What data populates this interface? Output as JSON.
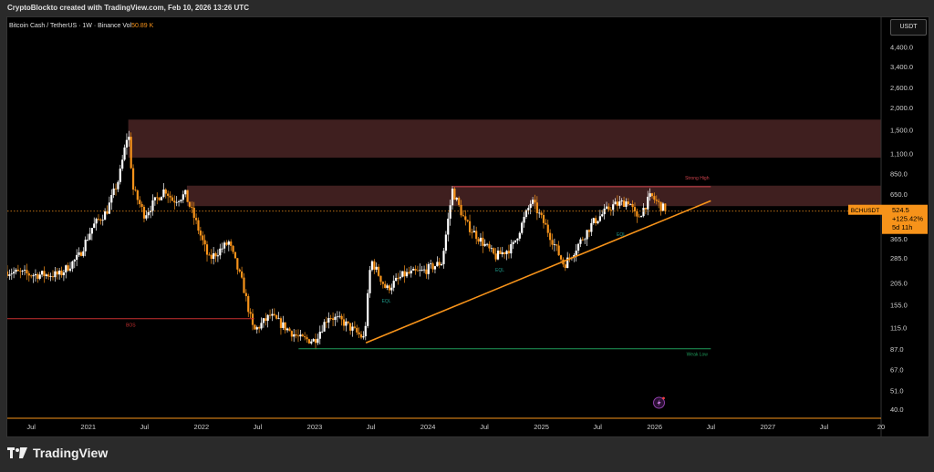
{
  "banner": {
    "text": "CryptoBlockto created with TradingView.com, Feb 10, 2026 13:26 UTC"
  },
  "header": {
    "symbol": "Bitcoin Cash / TetherUS · 1W · Binance",
    "vol_label": "Vol",
    "vol_value": "50.89 K"
  },
  "currency_button": "USDT",
  "footer": {
    "brand": "TradingView"
  },
  "colors": {
    "up": "#ffffff",
    "down": "#f7931a",
    "trendline": "#f7931a",
    "zone": "#4a2525",
    "strong_high_line": "#c8404a",
    "weak_low_line": "#1f9a5a",
    "bos_line": "#c83030",
    "price_label_bg": "#f7931a"
  },
  "chart_data": {
    "type": "candlestick",
    "y_scale": "log",
    "ylim": [
      37,
      5000
    ],
    "y_ticks": [
      "4,400.0",
      "3,400.0",
      "2,600.0",
      "2,000.0",
      "1,500.0",
      "1,100.0",
      "850.0",
      "650.0",
      "365.0",
      "285.0",
      "205.0",
      "155.0",
      "115.0",
      "87.0",
      "67.0",
      "51.0",
      "40.0"
    ],
    "x_ticks": [
      {
        "date": "2020-07-01",
        "label": "Jul"
      },
      {
        "date": "2021-01-01",
        "label": "2021"
      },
      {
        "date": "2021-07-01",
        "label": "Jul"
      },
      {
        "date": "2022-01-01",
        "label": "2022"
      },
      {
        "date": "2022-07-01",
        "label": "Jul"
      },
      {
        "date": "2023-01-01",
        "label": "2023"
      },
      {
        "date": "2023-07-01",
        "label": "Jul"
      },
      {
        "date": "2024-01-01",
        "label": "2024"
      },
      {
        "date": "2024-07-01",
        "label": "Jul"
      },
      {
        "date": "2025-01-01",
        "label": "2025"
      },
      {
        "date": "2025-07-01",
        "label": "Jul"
      },
      {
        "date": "2026-01-01",
        "label": "2026"
      },
      {
        "date": "2026-07-01",
        "label": "Jul"
      },
      {
        "date": "2027-01-01",
        "label": "2027"
      },
      {
        "date": "2027-07-01",
        "label": "Jul"
      },
      {
        "date": "2028-01-01",
        "label": "20"
      }
    ],
    "x_range": [
      "2020-04-15",
      "2028-01-01"
    ],
    "price_path": [
      [
        "2020-04-15",
        240
      ],
      [
        "2020-07-01",
        230
      ],
      [
        "2020-10-01",
        230
      ],
      [
        "2020-12-01",
        290
      ],
      [
        "2021-01-15",
        430
      ],
      [
        "2021-03-01",
        520
      ],
      [
        "2021-04-10",
        800
      ],
      [
        "2021-05-10",
        1500
      ],
      [
        "2021-05-25",
        700
      ],
      [
        "2021-07-01",
        500
      ],
      [
        "2021-09-05",
        700
      ],
      [
        "2021-10-01",
        600
      ],
      [
        "2021-11-10",
        650
      ],
      [
        "2021-12-15",
        450
      ],
      [
        "2022-01-25",
        280
      ],
      [
        "2022-03-30",
        350
      ],
      [
        "2022-05-15",
        200
      ],
      [
        "2022-06-18",
        110
      ],
      [
        "2022-08-10",
        135
      ],
      [
        "2022-10-01",
        115
      ],
      [
        "2022-11-15",
        100
      ],
      [
        "2022-12-31",
        98
      ],
      [
        "2023-02-15",
        135
      ],
      [
        "2023-04-01",
        125
      ],
      [
        "2023-06-10",
        100
      ],
      [
        "2023-07-01",
        280
      ],
      [
        "2023-08-20",
        190
      ],
      [
        "2023-10-15",
        230
      ],
      [
        "2023-12-15",
        240
      ],
      [
        "2024-02-15",
        270
      ],
      [
        "2024-03-20",
        690
      ],
      [
        "2024-05-01",
        450
      ],
      [
        "2024-08-05",
        290
      ],
      [
        "2024-09-30",
        330
      ],
      [
        "2024-11-30",
        600
      ],
      [
        "2025-01-15",
        430
      ],
      [
        "2025-03-15",
        260
      ],
      [
        "2025-04-25",
        330
      ],
      [
        "2025-06-15",
        450
      ],
      [
        "2025-08-15",
        560
      ],
      [
        "2025-10-10",
        600
      ],
      [
        "2025-11-05",
        470
      ],
      [
        "2025-12-20",
        640
      ],
      [
        "2026-01-20",
        560
      ],
      [
        "2026-02-10",
        524.5
      ]
    ],
    "zones": [
      {
        "from": "2021-05-10",
        "to": "2028-01-01",
        "low": 1050,
        "high": 1720
      },
      {
        "from": "2021-11-15",
        "to": "2028-01-01",
        "low": 560,
        "high": 730
      }
    ],
    "trendline": {
      "from_date": "2023-06-15",
      "from_price": 95,
      "to_date": "2026-07-01",
      "to_price": 600
    },
    "levels": [
      {
        "name": "strong-high",
        "label": "Strong High",
        "price": 720,
        "from": "2024-03-20",
        "to": "2026-07-01"
      },
      {
        "name": "weak-low",
        "label": "Weak Low",
        "price": 88,
        "from": "2022-11-10",
        "to": "2026-07-01"
      },
      {
        "name": "bos",
        "label": "BOS",
        "price": 130,
        "from": "2020-04-15",
        "to": "2022-06-20"
      }
    ],
    "annotations": [
      {
        "label": "EQL",
        "date": "2023-08-20",
        "price": 160
      },
      {
        "label": "EQL",
        "date": "2024-08-20",
        "price": 240
      },
      {
        "label": "EQL",
        "date": "2025-09-15",
        "price": 380
      }
    ],
    "current": {
      "symbol": "BCHUSDT",
      "price": "524.5",
      "change": "+125.42%",
      "countdown": "5d 11h"
    }
  }
}
